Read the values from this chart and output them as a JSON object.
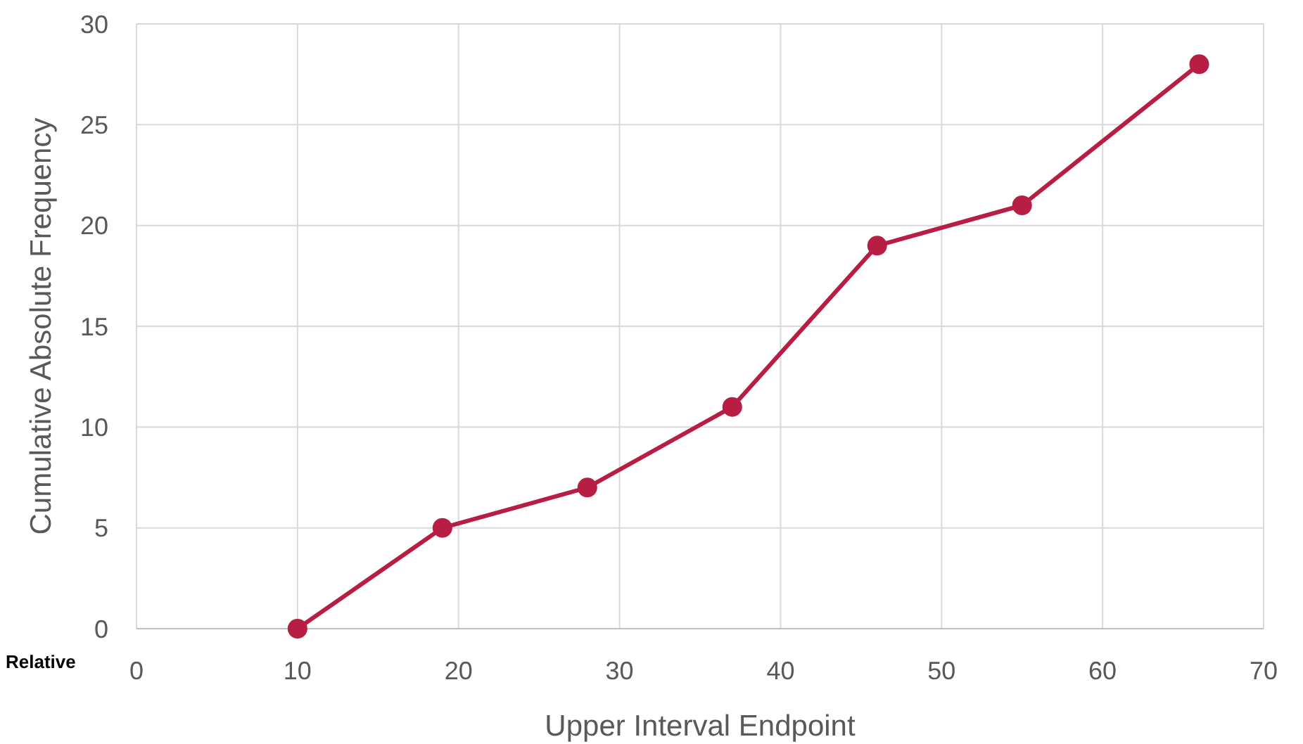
{
  "chart_data": {
    "type": "line",
    "xlabel": "Upper Interval Endpoint",
    "ylabel": "Cumulative Absolute Frequency",
    "x": [
      10,
      19,
      28,
      37,
      46,
      55,
      66
    ],
    "series": [
      {
        "color": "#b81e44",
        "values": [
          0,
          5,
          7,
          11,
          19,
          21,
          28
        ]
      }
    ],
    "xlim": [
      0,
      70
    ],
    "xticks": [
      0,
      10,
      20,
      30,
      40,
      50,
      60,
      70
    ],
    "ylim": [
      0,
      30
    ],
    "yticks": [
      0,
      5,
      10,
      15,
      20,
      25,
      30
    ],
    "grid": true,
    "marker": "circle",
    "line_style": "solid",
    "annotations": [
      "Relative"
    ]
  }
}
